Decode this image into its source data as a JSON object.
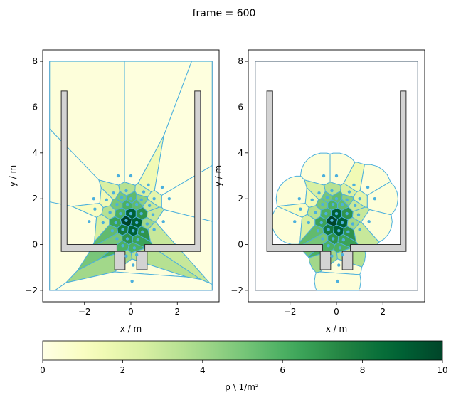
{
  "figure": {
    "title": "frame = 600",
    "colors": {
      "cell_edge": "#4cb0dd",
      "agent": "#4cb0dd",
      "wall_fill": "#d3d3d3",
      "wall_edge": "#2f2f2f",
      "domain_edge": "#708090"
    }
  },
  "chart_data": [
    {
      "type": "voronoi-density",
      "panel": "left",
      "xlabel": "x / m",
      "ylabel": "y / m",
      "xlim": [
        -3.8,
        3.8
      ],
      "ylim": [
        -2.5,
        8.5
      ],
      "xticks": [
        -2,
        0,
        2
      ],
      "yticks": [
        -2,
        0,
        2,
        4,
        6,
        8
      ],
      "cells": "unclipped",
      "agents": [
        [
          -0.55,
          3.0
        ],
        [
          0.0,
          3.0
        ],
        [
          0.75,
          2.6
        ],
        [
          1.35,
          2.5
        ],
        [
          -1.6,
          2.0
        ],
        [
          1.65,
          2.0
        ],
        [
          -0.75,
          2.25
        ],
        [
          -0.2,
          2.35
        ],
        [
          0.55,
          2.3
        ],
        [
          -0.4,
          2.05
        ],
        [
          0.0,
          2.0
        ],
        [
          0.45,
          1.95
        ],
        [
          1.0,
          2.0
        ],
        [
          -1.05,
          1.95
        ],
        [
          -0.6,
          1.75
        ],
        [
          -0.15,
          1.75
        ],
        [
          0.25,
          1.75
        ],
        [
          0.8,
          1.7
        ],
        [
          -1.55,
          1.55
        ],
        [
          -0.9,
          1.4
        ],
        [
          -0.45,
          1.35
        ],
        [
          0.0,
          1.35
        ],
        [
          0.45,
          1.35
        ],
        [
          0.95,
          1.3
        ],
        [
          -1.8,
          1.0
        ],
        [
          -1.2,
          0.95
        ],
        [
          -0.65,
          0.95
        ],
        [
          -0.2,
          1.05
        ],
        [
          0.25,
          0.95
        ],
        [
          0.7,
          0.9
        ],
        [
          1.4,
          1.0
        ],
        [
          -0.8,
          0.6
        ],
        [
          -0.35,
          0.65
        ],
        [
          0.1,
          0.6
        ],
        [
          0.5,
          0.55
        ],
        [
          1.0,
          0.65
        ],
        [
          -0.6,
          0.25
        ],
        [
          -0.15,
          0.25
        ],
        [
          0.3,
          0.2
        ],
        [
          -0.35,
          -0.05
        ],
        [
          0.15,
          -0.15
        ],
        [
          -0.2,
          -0.5
        ],
        [
          0.25,
          -0.45
        ],
        [
          0.1,
          -0.9
        ],
        [
          0.05,
          -1.6
        ]
      ],
      "cell_density": [
        0.3,
        0.2,
        1.5,
        0.2,
        0.2,
        0.2,
        2.5,
        3.5,
        2.5,
        5,
        5.5,
        4.5,
        2,
        1.5,
        5,
        6,
        5.5,
        3,
        1,
        3.5,
        6,
        9,
        7,
        3,
        0.2,
        2.5,
        6.5,
        10,
        9,
        4,
        0.2,
        5.5,
        8,
        9,
        7,
        3,
        5,
        7,
        6.5,
        6,
        6,
        4,
        3.5,
        0.3,
        0.1
      ]
    },
    {
      "type": "voronoi-density",
      "panel": "right",
      "xlabel": "x / m",
      "ylabel": "y / m",
      "xlim": [
        -3.8,
        3.8
      ],
      "ylim": [
        -2.5,
        8.5
      ],
      "xticks": [
        -2,
        0,
        2
      ],
      "yticks": [
        -2,
        0,
        2,
        4,
        6,
        8
      ],
      "cells": "cut-off radius",
      "agents": "same as left panel"
    }
  ],
  "colorbar": {
    "label": "ρ \\ 1/m²",
    "cmap": "YlGn",
    "vmin": 0,
    "vmax": 10,
    "ticks": [
      0,
      2,
      4,
      6,
      8,
      10
    ]
  }
}
